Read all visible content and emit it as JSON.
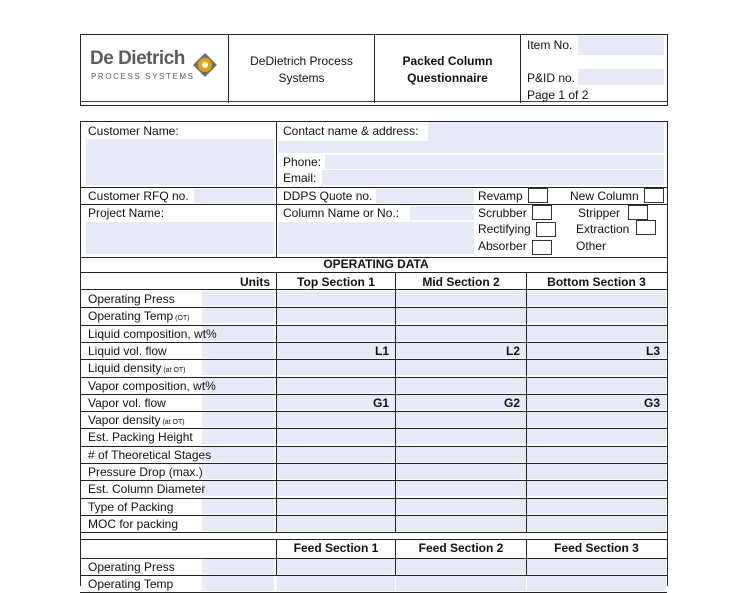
{
  "header": {
    "logo_brand": "De Dietrich",
    "logo_sub": "PROCESS SYSTEMS",
    "company_line1": "DeDietrich Process",
    "company_line2": "Systems",
    "doc_title_line1": "Packed Column",
    "doc_title_line2": "Questionnaire",
    "item_no_label": "Item No.",
    "pid_label": "P&ID no.",
    "page_label": "Page 1 of 2"
  },
  "info": {
    "customer_name": "Customer Name:",
    "contact": "Contact name & address:",
    "phone": "Phone:",
    "email": "Email:",
    "customer_rfq": "Customer RFQ no.",
    "ddps_quote": "DDPS Quote no.",
    "project_name": "Project Name:",
    "column_name": "Column Name or No.:",
    "types_left": [
      "Revamp",
      "Scrubber",
      "Rectifying",
      "Absorber"
    ],
    "types_right": [
      "New Column",
      "Stripper",
      "Extraction",
      "Other"
    ]
  },
  "operating": {
    "title": "OPERATING DATA",
    "units_header": "Units",
    "col_headers": [
      "Top Section 1",
      "Mid Section 2",
      "Bottom Section 3"
    ],
    "rows": [
      {
        "label": "Operating Press",
        "sub": ""
      },
      {
        "label": "Operating Temp",
        "sub": "(OT)"
      },
      {
        "label": "Liquid composition, wt%",
        "sub": ""
      },
      {
        "label": "Liquid vol. flow",
        "sub": ""
      },
      {
        "label": "Liquid density",
        "sub": "(at OT)"
      },
      {
        "label": "Vapor composition, wt%",
        "sub": ""
      },
      {
        "label": "Vapor vol. flow",
        "sub": ""
      },
      {
        "label": "Vapor density",
        "sub": "(at OT)"
      },
      {
        "label": "Est. Packing Height",
        "sub": ""
      },
      {
        "label": "# of Theoretical Stages",
        "sub": ""
      },
      {
        "label": "Pressure Drop (max.)",
        "sub": ""
      },
      {
        "label": "Est. Column Diameter",
        "sub": ""
      },
      {
        "label": "Type of Packing",
        "sub": ""
      },
      {
        "label": "MOC for packing",
        "sub": ""
      }
    ],
    "liquid_tags": [
      "L1",
      "L2",
      "L3"
    ],
    "gas_tags": [
      "G1",
      "G2",
      "G3"
    ],
    "feed_headers": [
      "Feed Section 1",
      "Feed Section 2",
      "Feed Section 3"
    ],
    "feed_rows": [
      {
        "label": "Operating Press"
      },
      {
        "label": "Operating Temp"
      }
    ]
  },
  "colors": {
    "field_fill": "#e6e9f7",
    "logo_orange": "#e8a200",
    "logo_gray": "#6d6e71"
  }
}
